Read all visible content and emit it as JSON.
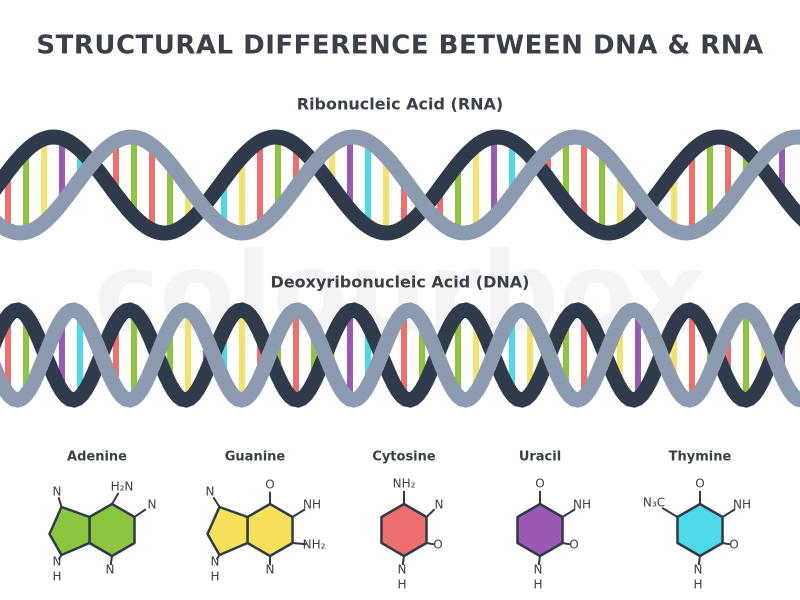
{
  "header": {
    "title": "STRUCTURAL DIFFERENCE BETWEEN DNA & RNA"
  },
  "watermark": "colourbox",
  "rna": {
    "label": "Ribonucleic Acid (RNA)"
  },
  "dna": {
    "label": "Deoxyribonucleic Acid (DNA)"
  },
  "molecules": [
    {
      "name": "Adenine",
      "color": "#8cc63f",
      "atoms": [
        "N",
        "H₂N",
        "N",
        "N",
        "N",
        "H"
      ]
    },
    {
      "name": "Guanine",
      "color": "#f7e15a",
      "atoms": [
        "N",
        "O",
        "NH",
        "NH₂",
        "N",
        "N",
        "H"
      ]
    },
    {
      "name": "Cytosine",
      "color": "#ef6f6c",
      "atoms": [
        "NH₂",
        "N",
        "O",
        "N",
        "H"
      ]
    },
    {
      "name": "Uracil",
      "color": "#9b59b6",
      "atoms": [
        "O",
        "NH",
        "O",
        "N",
        "H"
      ]
    },
    {
      "name": "Thymine",
      "color": "#4dd9e8",
      "atoms": [
        "N₃C",
        "O",
        "NH",
        "O",
        "N",
        "H"
      ]
    }
  ]
}
